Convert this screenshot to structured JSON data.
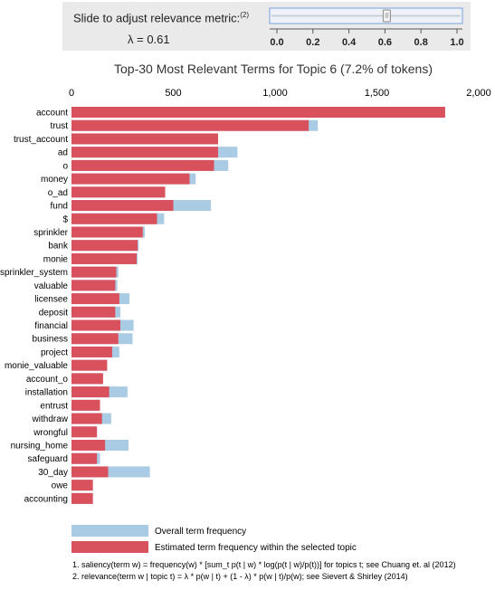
{
  "slider": {
    "label": "Slide to adjust relevance metric:",
    "footnote_ref": "(2)",
    "lambda_text": "λ = 0.61",
    "value": 0.61,
    "min": 0.0,
    "max": 1.0,
    "ticks": [
      "0.0",
      "0.2",
      "0.4",
      "0.6",
      "0.8",
      "1.0"
    ]
  },
  "chart_data": {
    "type": "bar",
    "orientation": "horizontal",
    "title": "Top-30 Most Relevant Terms for Topic 6 (7.2% of tokens)",
    "xlim": [
      0,
      2000
    ],
    "xticks": [
      0,
      500,
      1000,
      1500,
      2000
    ],
    "xtick_labels": [
      "0",
      "500",
      "1,000",
      "1,500",
      "2,000"
    ],
    "categories": [
      "account",
      "trust",
      "trust_account",
      "ad",
      "o",
      "money",
      "o_ad",
      "fund",
      "$",
      "sprinkler",
      "bank",
      "monie",
      "sprinkler_system",
      "valuable",
      "licensee",
      "deposit",
      "financial",
      "business",
      "project",
      "monie_valuable",
      "account_o",
      "installation",
      "entrust",
      "withdraw",
      "wrongful",
      "nursing_home",
      "safeguard",
      "30_day",
      "owe",
      "accounting"
    ],
    "series": [
      {
        "name": "Overall term frequency",
        "color": "#a9cbe3",
        "values": [
          1835,
          1210,
          720,
          815,
          770,
          610,
          460,
          685,
          455,
          360,
          330,
          325,
          230,
          225,
          285,
          240,
          305,
          300,
          235,
          175,
          155,
          275,
          140,
          195,
          125,
          280,
          140,
          385,
          105,
          105
        ]
      },
      {
        "name": "Estimated term frequency within the selected topic",
        "color": "#d9515c",
        "values": [
          1835,
          1165,
          720,
          720,
          700,
          580,
          460,
          500,
          420,
          350,
          325,
          320,
          220,
          215,
          235,
          215,
          240,
          230,
          200,
          175,
          155,
          185,
          140,
          150,
          125,
          165,
          125,
          180,
          105,
          105
        ]
      }
    ],
    "grid": false,
    "legend_position": "bottom-left"
  },
  "notes": [
    "1. saliency(term w) = frequency(w) * [sum_t p(t | w) * log(p(t | w)/p(t))] for topics t; see Chuang et. al (2012)",
    "2. relevance(term w | topic t) = λ * p(w | t) + (1 - λ) * p(w | t)/p(w); see Sievert & Shirley (2014)"
  ]
}
